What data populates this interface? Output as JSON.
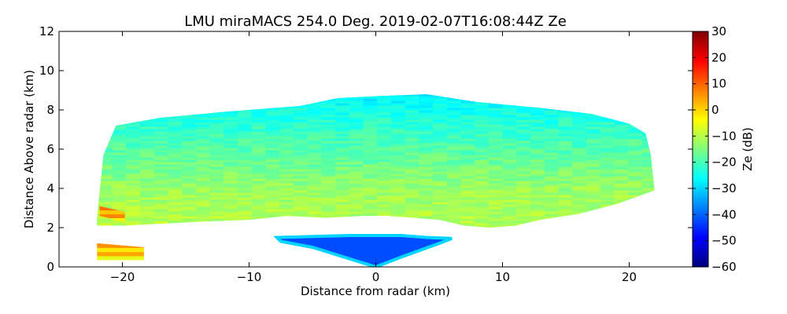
{
  "chart_data": {
    "type": "heatmap",
    "title": "LMU miraMACS 254.0 Deg. 2019-02-07T16:08:44Z  Ze",
    "xlabel": "Distance from radar (km)",
    "ylabel": "Distance Above radar  (km)",
    "xlim": [
      -25,
      25
    ],
    "ylim": [
      0,
      12
    ],
    "x_ticks": [
      -20,
      -10,
      0,
      10,
      20
    ],
    "x_tick_labels": [
      "−20",
      "−10",
      "0",
      "10",
      "20"
    ],
    "y_ticks": [
      0,
      2,
      4,
      6,
      8,
      10,
      12
    ],
    "y_tick_labels": [
      "0",
      "2",
      "4",
      "6",
      "8",
      "10",
      "12"
    ],
    "colorbar": {
      "label": "Ze (dB)",
      "range": [
        -60,
        30
      ],
      "ticks": [
        30,
        20,
        10,
        0,
        -10,
        -20,
        -30,
        -40,
        -50,
        -60
      ],
      "tick_labels": [
        "30",
        "20",
        "10",
        "0",
        "−10",
        "−20",
        "−30",
        "−40",
        "−50",
        "−60"
      ],
      "colormap": "jet",
      "colormap_stops": [
        "#00007f",
        "#0000ff",
        "#007fff",
        "#00ffff",
        "#7fff7f",
        "#ffff00",
        "#ff7f00",
        "#ff0000",
        "#7f0000"
      ]
    },
    "regions": [
      {
        "name": "main-cloud-band",
        "description_ze_db": "upper cyan ~-28, middle green ~-18, lower yellow ~-10",
        "outline_km": [
          [
            -22,
            2.5
          ],
          [
            -21.5,
            5.7
          ],
          [
            -20.5,
            7.2
          ],
          [
            -17,
            7.6
          ],
          [
            -12,
            7.9
          ],
          [
            -6,
            8.2
          ],
          [
            -3,
            8.6
          ],
          [
            0,
            8.7
          ],
          [
            4,
            8.8
          ],
          [
            8,
            8.4
          ],
          [
            13,
            8.1
          ],
          [
            17,
            7.8
          ],
          [
            20,
            7.3
          ],
          [
            21.3,
            6.8
          ],
          [
            21.7,
            5.7
          ],
          [
            22,
            3.9
          ],
          [
            19,
            3.2
          ],
          [
            16,
            2.7
          ],
          [
            13,
            2.4
          ],
          [
            11,
            2.1
          ],
          [
            9,
            2.0
          ],
          [
            7,
            2.1
          ],
          [
            5,
            2.4
          ],
          [
            3,
            2.5
          ],
          [
            1,
            2.6
          ],
          [
            -1,
            2.6
          ],
          [
            -4,
            2.5
          ],
          [
            -7,
            2.6
          ],
          [
            -10,
            2.4
          ],
          [
            -14,
            2.3
          ],
          [
            -17,
            2.2
          ],
          [
            -20,
            2.1
          ],
          [
            -22,
            2.1
          ]
        ],
        "layers_ze_db": [
          -10,
          -12,
          -17,
          -22,
          -28
        ]
      },
      {
        "name": "near-radar-low-echo",
        "description_ze_db": "blue ~-45 core, cyan edges",
        "outline_km": [
          [
            -7.8,
            1.5
          ],
          [
            -5,
            1.55
          ],
          [
            -2,
            1.6
          ],
          [
            2,
            1.6
          ],
          [
            4,
            1.5
          ],
          [
            6,
            1.45
          ],
          [
            5,
            1.2
          ],
          [
            2,
            0.5
          ],
          [
            0,
            0.0
          ],
          [
            -2,
            0.4
          ],
          [
            -5,
            1.0
          ],
          [
            -7.5,
            1.3
          ]
        ],
        "ze_db": -42
      },
      {
        "name": "near-surface-strong-echo",
        "description_ze_db": "orange/yellow ~0 dB",
        "outline_km": [
          [
            -22,
            0.35
          ],
          [
            -22,
            1.2
          ],
          [
            -18.3,
            1.0
          ],
          [
            -18.3,
            0.35
          ]
        ],
        "ze_db": 0
      },
      {
        "name": "bright-layer-left-edge",
        "description_ze_db": "orange ~2 dB",
        "outline_km": [
          [
            -21.8,
            2.6
          ],
          [
            -21.8,
            3.1
          ],
          [
            -19.8,
            2.8
          ],
          [
            -19.8,
            2.3
          ]
        ],
        "ze_db": 3
      }
    ]
  }
}
